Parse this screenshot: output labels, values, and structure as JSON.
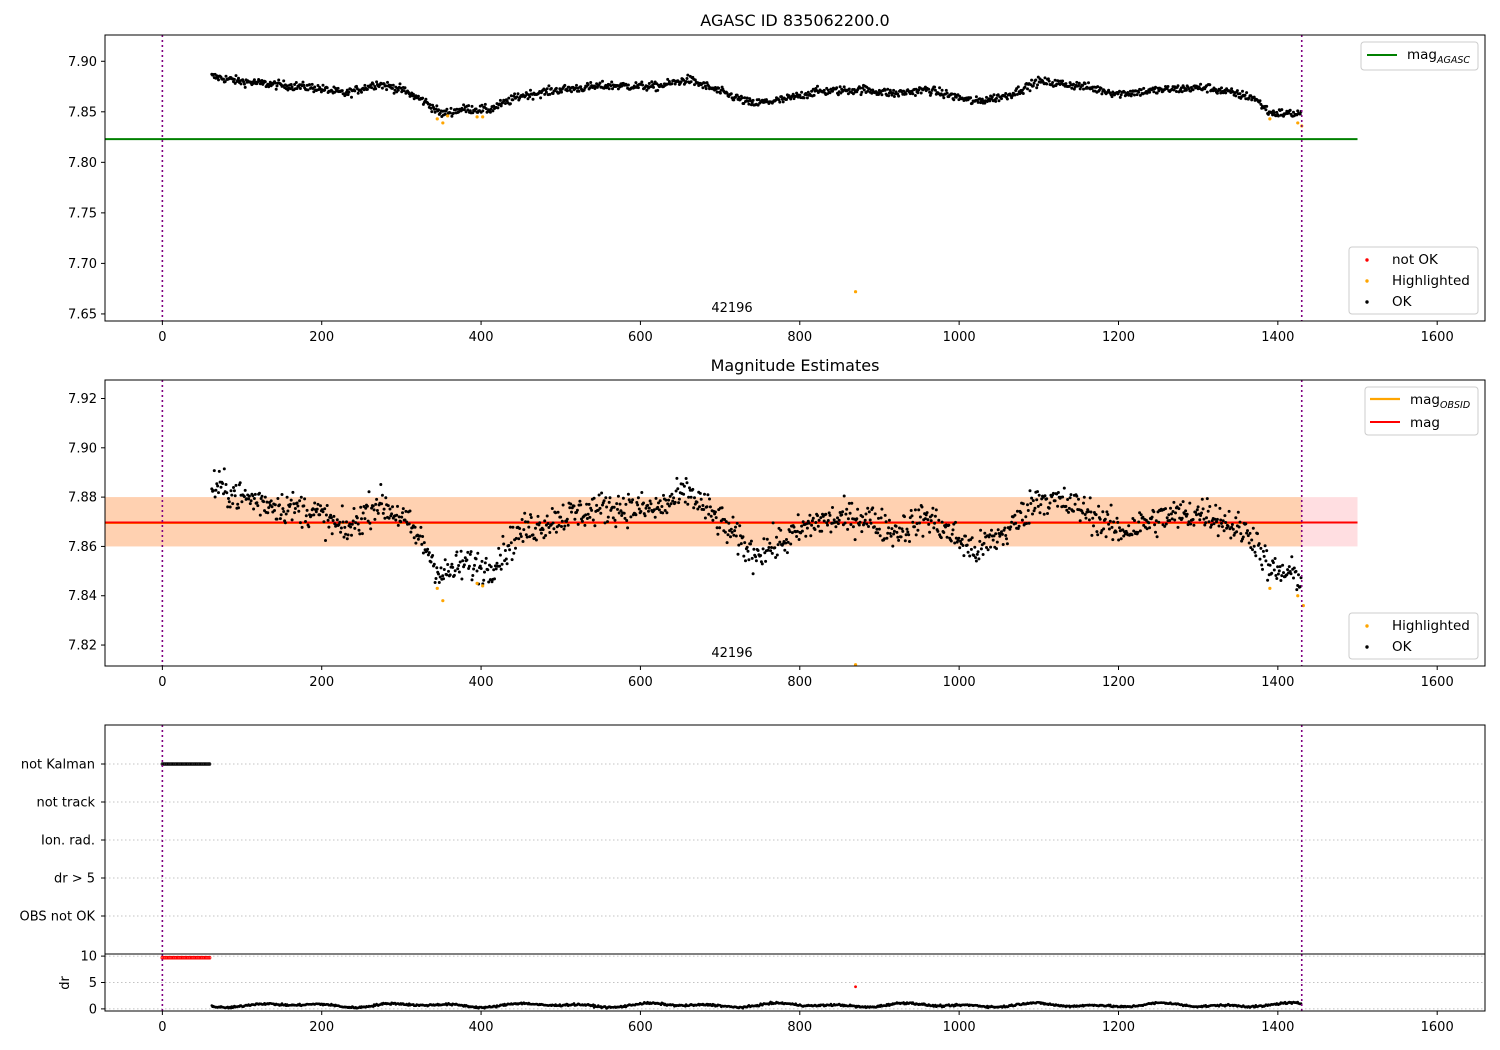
{
  "chart_data": [
    {
      "type": "scatter",
      "title": "AGASC ID 835062200.0",
      "xlim": [
        -72,
        1660
      ],
      "ylim": [
        7.643,
        7.926
      ],
      "xticks": [
        0,
        200,
        400,
        600,
        800,
        1000,
        1200,
        1400,
        1600
      ],
      "yticks": [
        7.65,
        7.7,
        7.75,
        7.8,
        7.85,
        7.9
      ],
      "ytick_labels": [
        "7.65",
        "7.70",
        "7.75",
        "7.80",
        "7.85",
        "7.90"
      ],
      "vlines": [
        0,
        1430
      ],
      "hline": {
        "name": "mag_AGASC",
        "y": 7.823,
        "x_range": [
          -72,
          1500
        ],
        "color": "#008000"
      },
      "annotation": {
        "text": "42196",
        "x": 715,
        "y": 7.648
      },
      "series": [
        {
          "name": "not OK",
          "color": "#ff0000"
        },
        {
          "name": "Highlighted",
          "color": "#ffa500",
          "points": [
            [
              345,
              7.843
            ],
            [
              352,
              7.839
            ],
            [
              358,
              7.846
            ],
            [
              395,
              7.845
            ],
            [
              402,
              7.845
            ],
            [
              870,
              7.672
            ],
            [
              1390,
              7.843
            ],
            [
              1425,
              7.839
            ],
            [
              1430,
              7.836
            ]
          ]
        },
        {
          "name": "OK",
          "color": "#000000",
          "x_range": [
            62,
            1430
          ],
          "profile": [
            [
              62,
              7.885
            ],
            [
              100,
              7.88
            ],
            [
              140,
              7.877
            ],
            [
              190,
              7.874
            ],
            [
              230,
              7.868
            ],
            [
              270,
              7.878
            ],
            [
              300,
              7.872
            ],
            [
              330,
              7.86
            ],
            [
              350,
              7.848
            ],
            [
              380,
              7.853
            ],
            [
              410,
              7.852
            ],
            [
              450,
              7.866
            ],
            [
              500,
              7.872
            ],
            [
              560,
              7.876
            ],
            [
              620,
              7.875
            ],
            [
              660,
              7.882
            ],
            [
              700,
              7.87
            ],
            [
              740,
              7.858
            ],
            [
              780,
              7.862
            ],
            [
              820,
              7.87
            ],
            [
              880,
              7.872
            ],
            [
              920,
              7.868
            ],
            [
              960,
              7.872
            ],
            [
              1020,
              7.86
            ],
            [
              1060,
              7.866
            ],
            [
              1100,
              7.88
            ],
            [
              1150,
              7.876
            ],
            [
              1200,
              7.868
            ],
            [
              1260,
              7.872
            ],
            [
              1310,
              7.874
            ],
            [
              1370,
              7.864
            ],
            [
              1390,
              7.849
            ],
            [
              1430,
              7.848
            ]
          ]
        }
      ],
      "legends": [
        {
          "position": "upper-right",
          "entries": [
            "mag_AGASC"
          ]
        },
        {
          "position": "lower-right",
          "entries": [
            "not OK",
            "Highlighted",
            "OK"
          ]
        }
      ]
    },
    {
      "type": "scatter",
      "title": "Magnitude Estimates",
      "xlim": [
        -72,
        1660
      ],
      "ylim": [
        7.8115,
        7.9275
      ],
      "xticks": [
        0,
        200,
        400,
        600,
        800,
        1000,
        1200,
        1400,
        1600
      ],
      "yticks": [
        7.82,
        7.84,
        7.86,
        7.88,
        7.9,
        7.92
      ],
      "ytick_labels": [
        "7.82",
        "7.84",
        "7.86",
        "7.88",
        "7.90",
        "7.92"
      ],
      "vlines": [
        0,
        1430
      ],
      "bands": [
        {
          "name": "mag_band",
          "y_range": [
            7.86,
            7.88
          ],
          "x_range": [
            -72,
            1500
          ],
          "color": "#ffd8dc"
        },
        {
          "name": "mag_OBSID_band",
          "y_range": [
            7.86,
            7.88
          ],
          "x_range": [
            -72,
            1430
          ],
          "color": "#ffcfa8"
        }
      ],
      "hlines": [
        {
          "name": "mag_OBSID",
          "y": 7.8695,
          "x_range": [
            -72,
            1430
          ],
          "color": "#ffa500"
        },
        {
          "name": "mag",
          "y": 7.8697,
          "x_range": [
            -72,
            1500
          ],
          "color": "#ff0000"
        }
      ],
      "annotation": {
        "text": "42196",
        "x": 715,
        "y": 7.8145
      },
      "series": [
        {
          "name": "Highlighted",
          "color": "#ffa500",
          "points": [
            [
              345,
              7.843
            ],
            [
              352,
              7.838
            ],
            [
              395,
              7.845
            ],
            [
              402,
              7.844
            ],
            [
              870,
              7.812
            ],
            [
              1390,
              7.843
            ],
            [
              1425,
              7.84
            ],
            [
              1432,
              7.836
            ]
          ]
        },
        {
          "name": "OK",
          "color": "#000000",
          "x_range": [
            62,
            1430
          ],
          "profile": [
            [
              62,
              7.885
            ],
            [
              100,
              7.88
            ],
            [
              140,
              7.877
            ],
            [
              190,
              7.874
            ],
            [
              230,
              7.866
            ],
            [
              270,
              7.878
            ],
            [
              300,
              7.872
            ],
            [
              330,
              7.86
            ],
            [
              350,
              7.848
            ],
            [
              380,
              7.853
            ],
            [
              410,
              7.851
            ],
            [
              450,
              7.866
            ],
            [
              500,
              7.872
            ],
            [
              560,
              7.876
            ],
            [
              620,
              7.875
            ],
            [
              660,
              7.882
            ],
            [
              700,
              7.87
            ],
            [
              740,
              7.857
            ],
            [
              780,
              7.862
            ],
            [
              820,
              7.87
            ],
            [
              880,
              7.872
            ],
            [
              920,
              7.866
            ],
            [
              960,
              7.872
            ],
            [
              1020,
              7.858
            ],
            [
              1060,
              7.866
            ],
            [
              1100,
              7.88
            ],
            [
              1150,
              7.876
            ],
            [
              1200,
              7.866
            ],
            [
              1260,
              7.872
            ],
            [
              1310,
              7.874
            ],
            [
              1370,
              7.864
            ],
            [
              1390,
              7.85
            ],
            [
              1430,
              7.848
            ]
          ]
        }
      ],
      "legends": [
        {
          "position": "upper-right",
          "entries": [
            "mag_OBSID",
            "mag"
          ]
        },
        {
          "position": "lower-right",
          "entries": [
            "Highlighted",
            "OK"
          ]
        }
      ]
    },
    {
      "type": "scatter",
      "title": "",
      "xlim": [
        -72,
        1660
      ],
      "categories": [
        "not Kalman",
        "not track",
        "Ion. rad.",
        "dr > 5",
        "OBS not OK"
      ],
      "vlines": [
        0,
        1430
      ],
      "grid": true,
      "series": [
        {
          "name": "not Kalman",
          "color": "#000000",
          "x_range": [
            0,
            60
          ]
        }
      ]
    },
    {
      "type": "scatter",
      "title": "",
      "ylabel": "dr",
      "xlim": [
        -72,
        1660
      ],
      "ylim": [
        -0.4,
        10.4
      ],
      "xticks": [
        0,
        200,
        400,
        600,
        800,
        1000,
        1200,
        1400,
        1600
      ],
      "yticks": [
        0,
        5,
        10
      ],
      "ytick_labels": [
        "0",
        "5",
        "10"
      ],
      "vlines": [
        0,
        1430
      ],
      "grid": true,
      "series": [
        {
          "name": "dr high",
          "color": "#ff0000",
          "x_range": [
            0,
            60
          ],
          "y": 9.7
        },
        {
          "name": "dr outlier",
          "color": "#ff0000",
          "points": [
            [
              870,
              4.2
            ]
          ]
        },
        {
          "name": "dr",
          "color": "#000000",
          "x_range": [
            62,
            1430
          ]
        }
      ]
    }
  ],
  "text": {
    "title1": "AGASC ID 835062200.0",
    "title2": "Magnitude Estimates",
    "annot1": "42196",
    "annot2": "42196",
    "ylabel4": "dr",
    "leg_mag_agasc": "mag",
    "leg_mag_agasc_sub": "AGASC",
    "leg_mag_obsid": "mag",
    "leg_mag_obsid_sub": "OBSID",
    "leg_mag": "mag",
    "leg_not_ok": "not OK",
    "leg_highlighted": "Highlighted",
    "leg_ok": "OK",
    "leg_highlighted2": "Highlighted",
    "leg_ok2": "OK"
  }
}
